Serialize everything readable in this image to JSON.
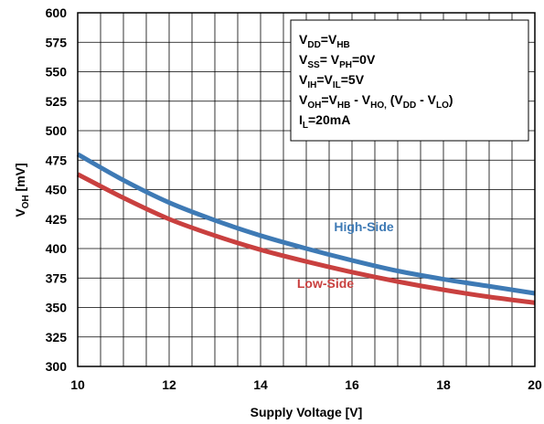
{
  "chart_data": {
    "type": "line",
    "xlabel": "Supply Voltage [V]",
    "ylabel": {
      "main": "V",
      "sub": "OH",
      "unit": " [mV]"
    },
    "xlim": [
      10,
      20
    ],
    "ylim": [
      300,
      600
    ],
    "x_ticks": [
      10,
      12,
      14,
      16,
      18,
      20
    ],
    "y_ticks": [
      300,
      325,
      350,
      375,
      400,
      425,
      450,
      475,
      500,
      525,
      550,
      575,
      600
    ],
    "grid": true,
    "series": [
      {
        "name": "High-Side",
        "color": "#3e7ab5",
        "x": [
          10,
          11,
          12,
          13,
          14,
          15,
          16,
          17,
          18,
          19,
          20
        ],
        "y": [
          480,
          458,
          439,
          424,
          411,
          400,
          390,
          381,
          374,
          368,
          362
        ]
      },
      {
        "name": "Low-Side",
        "color": "#c9403f",
        "x": [
          10,
          11,
          12,
          13,
          14,
          15,
          16,
          17,
          18,
          19,
          20
        ],
        "y": [
          463,
          443,
          425,
          411,
          399,
          389,
          380,
          372,
          365,
          359,
          354
        ]
      }
    ],
    "annotation_lines": [
      [
        {
          "t": "V"
        },
        {
          "t": "DD",
          "sub": true
        },
        {
          "t": "=V"
        },
        {
          "t": "HB",
          "sub": true
        }
      ],
      [
        {
          "t": "V"
        },
        {
          "t": "SS",
          "sub": true
        },
        {
          "t": "= V"
        },
        {
          "t": "PH",
          "sub": true
        },
        {
          "t": "=0V"
        }
      ],
      [
        {
          "t": "V"
        },
        {
          "t": "IH",
          "sub": true
        },
        {
          "t": "=V"
        },
        {
          "t": "IL",
          "sub": true
        },
        {
          "t": "=5V"
        }
      ],
      [
        {
          "t": "V"
        },
        {
          "t": "OH",
          "sub": true
        },
        {
          "t": "=V"
        },
        {
          "t": "HB",
          "sub": true
        },
        {
          "t": " - V"
        },
        {
          "t": "HO,",
          "sub": true
        },
        {
          "t": " (V"
        },
        {
          "t": "DD",
          "sub": true
        },
        {
          "t": " - V"
        },
        {
          "t": "LO",
          "sub": true
        },
        {
          "t": ")"
        }
      ],
      [
        {
          "t": "I"
        },
        {
          "t": "L",
          "sub": true
        },
        {
          "t": "=20mA"
        }
      ]
    ]
  }
}
